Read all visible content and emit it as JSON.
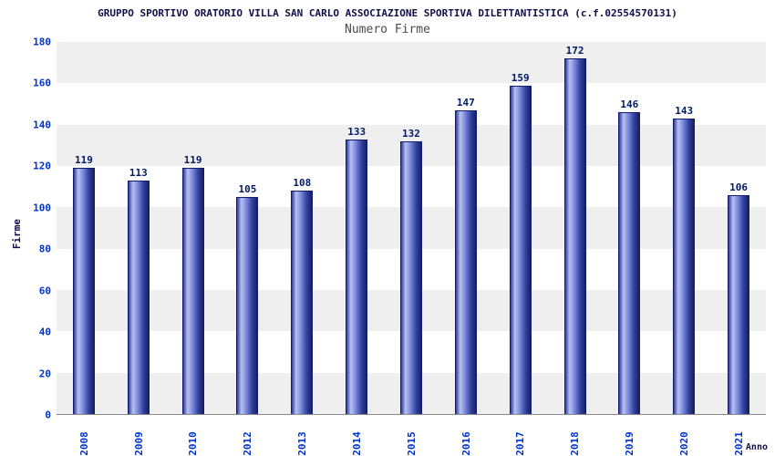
{
  "chart": {
    "title": "GRUPPO SPORTIVO ORATORIO VILLA SAN CARLO ASSOCIAZIONE SPORTIVA DILETTANTISTICA (c.f.02554570131)",
    "subtitle": "Numero Firme",
    "ylabel": "Firme",
    "xlabel": "Anno"
  },
  "chart_data": {
    "type": "bar",
    "title": "GRUPPO SPORTIVO ORATORIO VILLA SAN CARLO ASSOCIAZIONE SPORTIVA DILETTANTISTICA (c.f.02554570131)",
    "subtitle": "Numero Firme",
    "xlabel": "Anno",
    "ylabel": "Firme",
    "categories": [
      "2008",
      "2009",
      "2010",
      "2012",
      "2013",
      "2014",
      "2015",
      "2016",
      "2017",
      "2018",
      "2019",
      "2020",
      "2021"
    ],
    "values": [
      119,
      113,
      119,
      105,
      108,
      133,
      132,
      147,
      159,
      172,
      146,
      143,
      106
    ],
    "ylim": [
      0,
      180
    ],
    "ytick_step": 20,
    "grid": "horizontal-bands",
    "legend": "none",
    "colors": {
      "bar_dark": "#1b2a8f",
      "bar_light": "#b9c3ef",
      "tick_label": "#0033cc",
      "value_label": "#001a66",
      "stripe": "#efefef",
      "title": "#10104a"
    }
  }
}
